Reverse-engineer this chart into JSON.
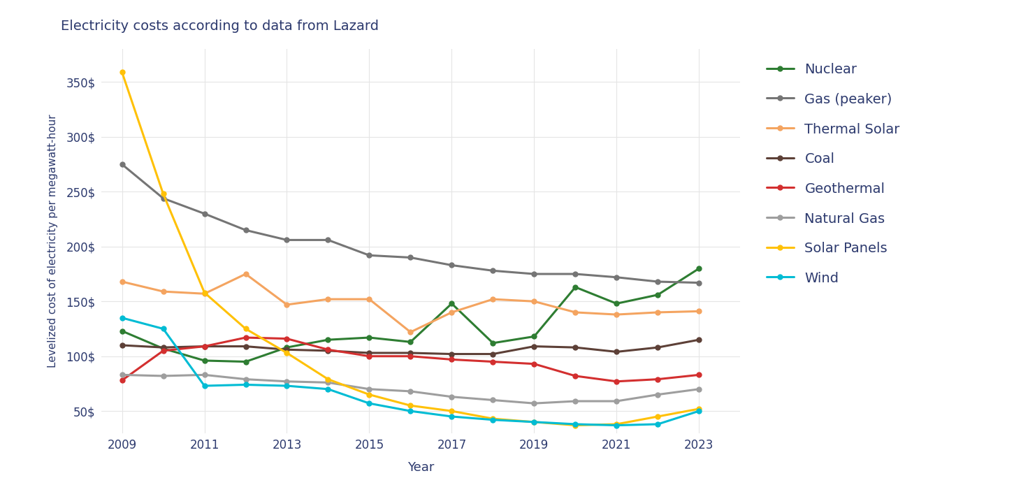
{
  "title": "Electricity costs according to data from Lazard",
  "xlabel": "Year",
  "ylabel": "Levelized cost of electricity per megawatt-hour",
  "background_color": "#ffffff",
  "grid_color": "#e5e5e5",
  "text_color": "#2d3a6e",
  "years": [
    2009,
    2010,
    2011,
    2012,
    2013,
    2014,
    2015,
    2016,
    2017,
    2018,
    2019,
    2020,
    2021,
    2022,
    2023
  ],
  "series": [
    {
      "name": "Nuclear",
      "color": "#2e7d32",
      "values": [
        123,
        107,
        96,
        95,
        108,
        115,
        117,
        113,
        148,
        112,
        118,
        163,
        148,
        156,
        180
      ]
    },
    {
      "name": "Gas (peaker)",
      "color": "#757575",
      "values": [
        275,
        244,
        230,
        215,
        206,
        206,
        192,
        190,
        183,
        178,
        175,
        175,
        172,
        168,
        167
      ]
    },
    {
      "name": "Thermal Solar",
      "color": "#f4a460",
      "values": [
        168,
        159,
        157,
        175,
        147,
        152,
        152,
        122,
        140,
        152,
        150,
        140,
        138,
        140,
        141
      ]
    },
    {
      "name": "Coal",
      "color": "#5d4037",
      "values": [
        110,
        108,
        109,
        109,
        106,
        105,
        103,
        103,
        102,
        102,
        109,
        108,
        104,
        108,
        115
      ]
    },
    {
      "name": "Geothermal",
      "color": "#d32f2f",
      "values": [
        78,
        105,
        109,
        117,
        116,
        106,
        100,
        100,
        97,
        95,
        93,
        82,
        77,
        79,
        83
      ]
    },
    {
      "name": "Natural Gas",
      "color": "#9e9e9e",
      "values": [
        83,
        82,
        83,
        79,
        77,
        76,
        70,
        68,
        63,
        60,
        57,
        59,
        59,
        65,
        70
      ]
    },
    {
      "name": "Solar Panels",
      "color": "#ffc107",
      "values": [
        359,
        248,
        158,
        125,
        103,
        79,
        65,
        55,
        50,
        43,
        40,
        37,
        38,
        45,
        52
      ]
    },
    {
      "name": "Wind",
      "color": "#00bcd4",
      "values": [
        135,
        125,
        73,
        74,
        73,
        70,
        57,
        50,
        45,
        42,
        40,
        38,
        37,
        38,
        50
      ]
    }
  ],
  "yticks": [
    50,
    100,
    150,
    200,
    250,
    300,
    350
  ],
  "xticks": [
    2009,
    2011,
    2013,
    2015,
    2017,
    2019,
    2021,
    2023
  ],
  "ylim": [
    30,
    380
  ],
  "xlim": [
    2008.5,
    2024.0
  ]
}
